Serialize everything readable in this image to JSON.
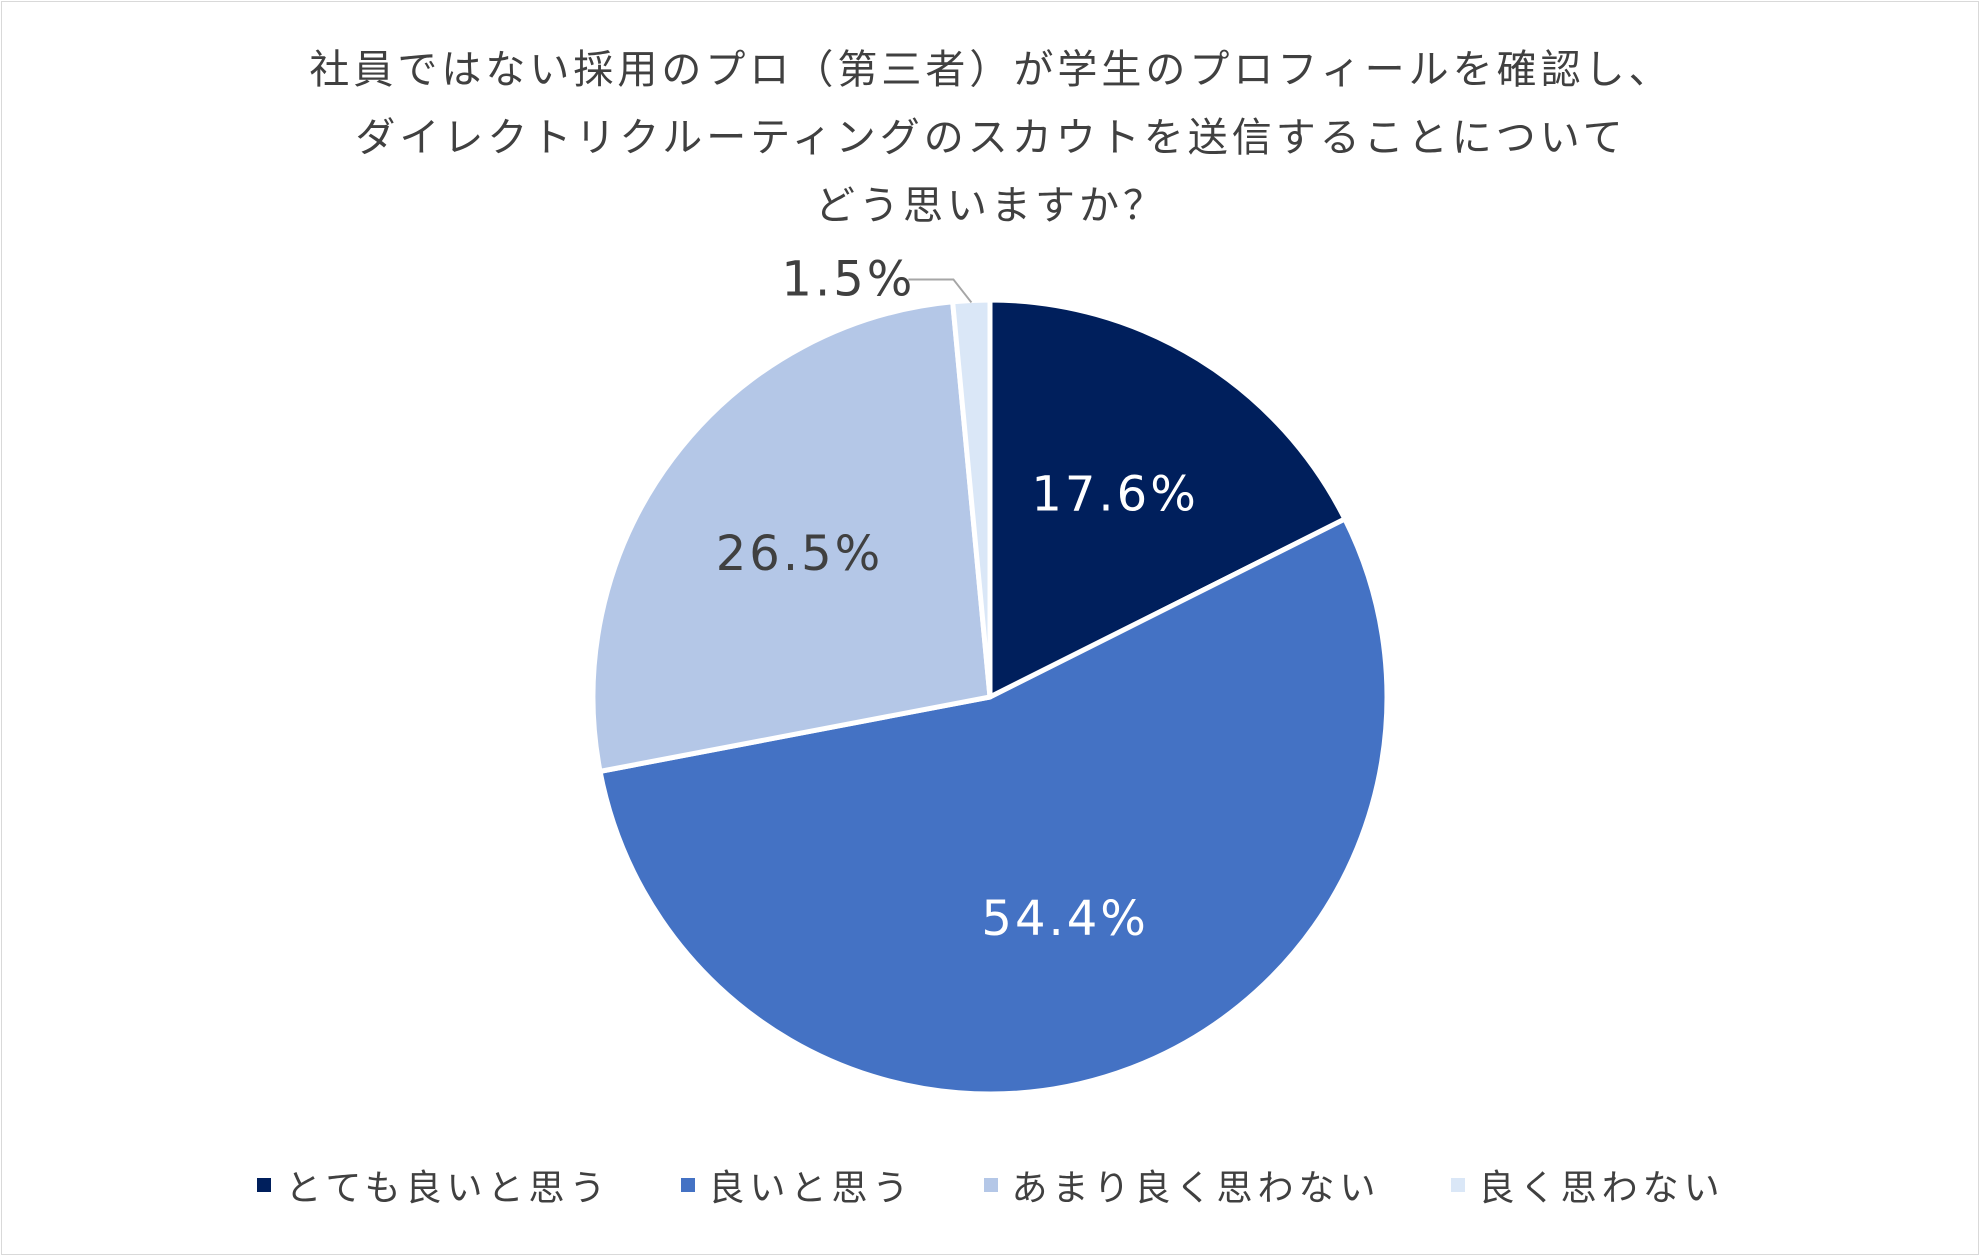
{
  "chart_data": {
    "type": "pie",
    "title_lines": [
      "社員ではない採用のプロ（第三者）が学生のプロフィールを確認し、",
      "ダイレクトリクルーティングのスカウトを送信することについて",
      "どう思いますか？"
    ],
    "categories": [
      "とても良いと思う",
      "良いと思う",
      "あまり良く思わない",
      "良く思わない"
    ],
    "values": [
      17.6,
      54.4,
      26.5,
      1.5
    ],
    "data_labels": [
      "17.6%",
      "54.4%",
      "26.5%",
      "1.5%"
    ],
    "colors": [
      "#001f5c",
      "#4472c4",
      "#b4c7e7",
      "#dae7f7"
    ],
    "label_colors": [
      "#ffffff",
      "#ffffff",
      "#404040",
      "#404040"
    ],
    "start_angle": "12 o'clock",
    "direction": "clockwise",
    "legend_position": "bottom"
  }
}
